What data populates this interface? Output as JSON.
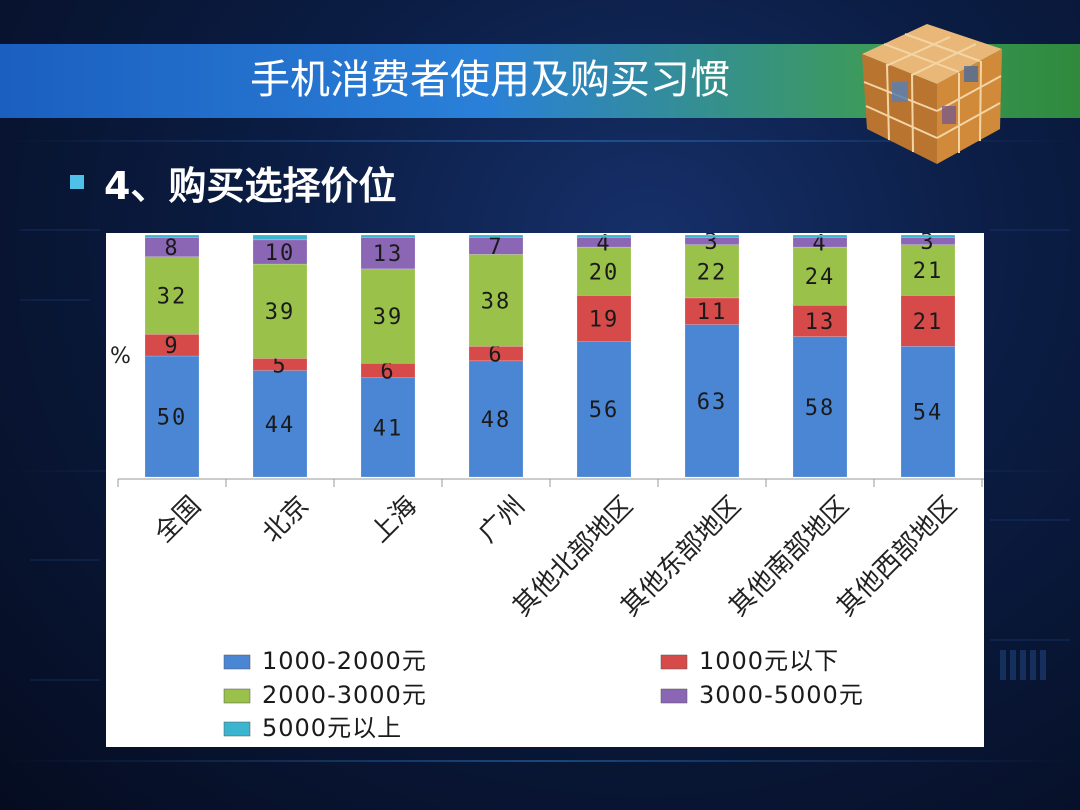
{
  "slide": {
    "title": "手机消费者使用及购买习惯",
    "bullet": "4、购买选择价位"
  },
  "chart_data": {
    "type": "bar",
    "stacked": true,
    "ylabel": "%",
    "categories": [
      "全国",
      "北京",
      "上海",
      "广州",
      "其他北部地区",
      "其他东部地区",
      "其他南部地区",
      "其他西部地区"
    ],
    "series": [
      {
        "name": "1000-2000元",
        "color": "#4a86d4",
        "values": [
          50,
          44,
          41,
          48,
          56,
          63,
          58,
          54
        ]
      },
      {
        "name": "1000元以下",
        "color": "#d64a4a",
        "values": [
          9,
          5,
          6,
          6,
          19,
          11,
          13,
          21
        ]
      },
      {
        "name": "2000-3000元",
        "color": "#9ac24a",
        "values": [
          32,
          39,
          39,
          38,
          20,
          22,
          24,
          21
        ]
      },
      {
        "name": "3000-5000元",
        "color": "#8a66b4",
        "values": [
          8,
          10,
          13,
          7,
          4,
          3,
          4,
          3
        ]
      },
      {
        "name": "5000元以上",
        "color": "#3ab4cf",
        "values": [
          1,
          2,
          1,
          1,
          1,
          1,
          1,
          1
        ]
      }
    ],
    "data_labels": [
      [
        "50",
        "44",
        "41",
        "48",
        "56",
        "63",
        "58",
        "54"
      ],
      [
        "9",
        "5",
        "6",
        "6",
        "19",
        "11",
        "13",
        "21"
      ],
      [
        "32",
        "39",
        "39",
        "38",
        "20",
        "22",
        "24",
        "21"
      ],
      [
        "8",
        "10",
        "13",
        "7",
        "4",
        "3",
        "4",
        "3"
      ],
      [
        "",
        "",
        "",
        "",
        "",
        "",
        "",
        ""
      ]
    ],
    "ylim": [
      0,
      100
    ],
    "legend_position": "bottom",
    "legend_order": [
      0,
      1,
      2,
      3,
      4
    ]
  }
}
